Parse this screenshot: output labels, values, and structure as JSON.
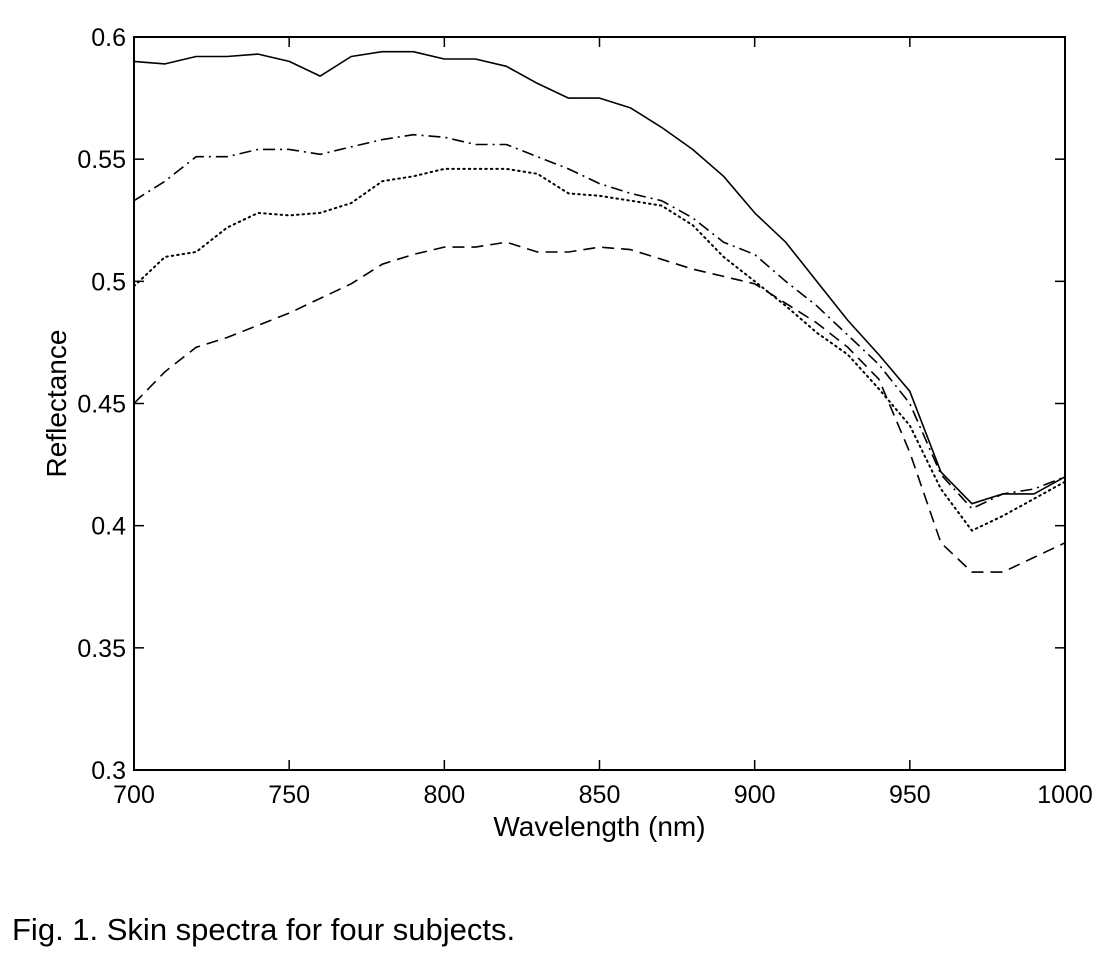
{
  "chart_data": {
    "type": "line",
    "title": "",
    "xlabel": "Wavelength (nm)",
    "ylabel": "Reflectance",
    "xlim": [
      700,
      1000
    ],
    "ylim": [
      0.3,
      0.6
    ],
    "xticks": [
      "700",
      "750",
      "800",
      "850",
      "900",
      "950",
      "1000"
    ],
    "yticks": [
      "0.3",
      "0.35",
      "0.4",
      "0.45",
      "0.5",
      "0.55",
      "0.6"
    ],
    "grid": false,
    "legend": "none",
    "x": [
      700,
      710,
      720,
      730,
      740,
      750,
      760,
      770,
      780,
      790,
      800,
      810,
      820,
      830,
      840,
      850,
      860,
      870,
      880,
      890,
      900,
      910,
      920,
      930,
      940,
      950,
      960,
      970,
      980,
      990,
      1000
    ],
    "series": [
      {
        "style": "solid",
        "values": [
          0.59,
          0.589,
          0.592,
          0.592,
          0.593,
          0.59,
          0.584,
          0.592,
          0.594,
          0.594,
          0.591,
          0.591,
          0.588,
          0.581,
          0.575,
          0.575,
          0.571,
          0.563,
          0.554,
          0.543,
          0.528,
          0.516,
          0.5,
          0.484,
          0.47,
          0.455,
          0.422,
          0.409,
          0.413,
          0.413,
          0.42
        ]
      },
      {
        "style": "dashdot",
        "values": [
          0.533,
          0.541,
          0.551,
          0.551,
          0.554,
          0.554,
          0.552,
          0.555,
          0.558,
          0.56,
          0.559,
          0.556,
          0.556,
          0.551,
          0.546,
          0.54,
          0.536,
          0.533,
          0.526,
          0.516,
          0.511,
          0.5,
          0.49,
          0.478,
          0.466,
          0.45,
          0.421,
          0.407,
          0.413,
          0.415,
          0.42
        ]
      },
      {
        "style": "dotted",
        "values": [
          0.498,
          0.51,
          0.512,
          0.522,
          0.528,
          0.527,
          0.528,
          0.532,
          0.541,
          0.543,
          0.546,
          0.546,
          0.546,
          0.544,
          0.536,
          0.535,
          0.533,
          0.531,
          0.523,
          0.51,
          0.5,
          0.49,
          0.479,
          0.47,
          0.456,
          0.441,
          0.415,
          0.398,
          0.404,
          0.411,
          0.418
        ]
      },
      {
        "style": "dashed",
        "values": [
          0.45,
          0.463,
          0.473,
          0.477,
          0.482,
          0.487,
          0.493,
          0.499,
          0.507,
          0.511,
          0.514,
          0.514,
          0.516,
          0.512,
          0.512,
          0.514,
          0.513,
          0.509,
          0.505,
          0.502,
          0.499,
          0.491,
          0.483,
          0.473,
          0.46,
          0.43,
          0.393,
          0.381,
          0.381,
          0.387,
          0.393
        ]
      }
    ]
  },
  "caption": "Fig. 1. Skin spectra for four subjects."
}
